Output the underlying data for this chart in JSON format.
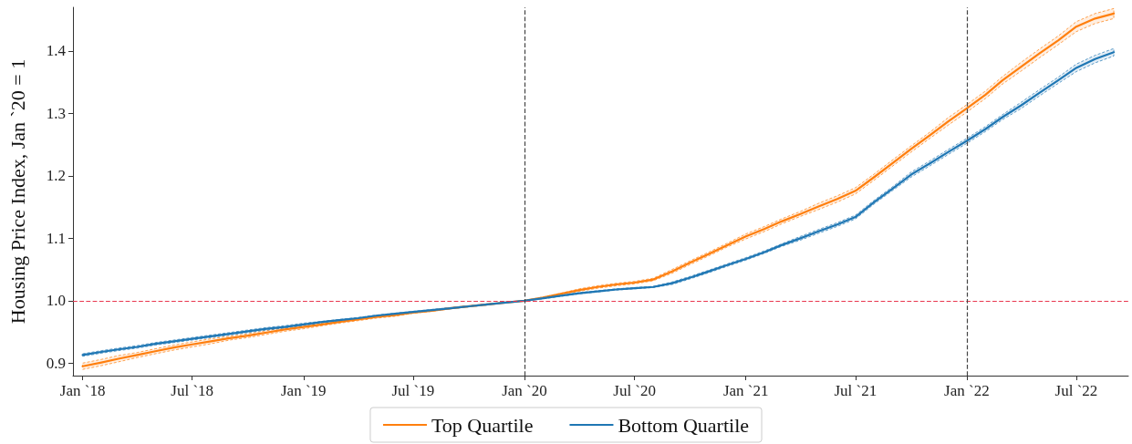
{
  "chart_data": {
    "type": "line",
    "ylabel": "Housing Price Index, Jan `20 = 1",
    "x": [
      "2018-01",
      "2018-02",
      "2018-03",
      "2018-04",
      "2018-05",
      "2018-06",
      "2018-07",
      "2018-08",
      "2018-09",
      "2018-10",
      "2018-11",
      "2018-12",
      "2019-01",
      "2019-02",
      "2019-03",
      "2019-04",
      "2019-05",
      "2019-06",
      "2019-07",
      "2019-08",
      "2019-09",
      "2019-10",
      "2019-11",
      "2019-12",
      "2020-01",
      "2020-02",
      "2020-03",
      "2020-04",
      "2020-05",
      "2020-06",
      "2020-07",
      "2020-08",
      "2020-09",
      "2020-10",
      "2020-11",
      "2020-12",
      "2021-01",
      "2021-02",
      "2021-03",
      "2021-04",
      "2021-05",
      "2021-06",
      "2021-07",
      "2021-08",
      "2021-09",
      "2021-10",
      "2021-11",
      "2021-12",
      "2022-01",
      "2022-02",
      "2022-03",
      "2022-04",
      "2022-05",
      "2022-06",
      "2022-07",
      "2022-08",
      "2022-09"
    ],
    "series": [
      {
        "name": "Top Quartile",
        "color": "#ff7f0e",
        "values": [
          0.895,
          0.901,
          0.907,
          0.913,
          0.919,
          0.925,
          0.93,
          0.935,
          0.94,
          0.944,
          0.949,
          0.954,
          0.958,
          0.962,
          0.966,
          0.97,
          0.974,
          0.977,
          0.981,
          0.984,
          0.988,
          0.991,
          0.994,
          0.997,
          1.0,
          1.005,
          1.011,
          1.017,
          1.022,
          1.026,
          1.029,
          1.034,
          1.047,
          1.061,
          1.075,
          1.089,
          1.103,
          1.115,
          1.127,
          1.139,
          1.151,
          1.163,
          1.176,
          1.198,
          1.221,
          1.243,
          1.265,
          1.287,
          1.308,
          1.33,
          1.353,
          1.375,
          1.396,
          1.417,
          1.439,
          1.452,
          1.46
        ],
        "upper": [
          0.9,
          0.906,
          0.912,
          0.917,
          0.923,
          0.929,
          0.934,
          0.939,
          0.943,
          0.947,
          0.952,
          0.957,
          0.961,
          0.964,
          0.968,
          0.972,
          0.976,
          0.979,
          0.982,
          0.985,
          0.989,
          0.992,
          0.995,
          0.997,
          1.0,
          1.006,
          1.012,
          1.019,
          1.024,
          1.028,
          1.031,
          1.036,
          1.05,
          1.064,
          1.078,
          1.092,
          1.107,
          1.119,
          1.131,
          1.143,
          1.156,
          1.168,
          1.181,
          1.203,
          1.226,
          1.248,
          1.27,
          1.293,
          1.314,
          1.336,
          1.359,
          1.382,
          1.403,
          1.424,
          1.447,
          1.46,
          1.468
        ],
        "lower": [
          0.89,
          0.896,
          0.902,
          0.909,
          0.915,
          0.921,
          0.926,
          0.931,
          0.937,
          0.941,
          0.946,
          0.951,
          0.955,
          0.96,
          0.964,
          0.968,
          0.972,
          0.975,
          0.98,
          0.983,
          0.987,
          0.99,
          0.993,
          0.997,
          1.0,
          1.004,
          1.01,
          1.015,
          1.02,
          1.024,
          1.027,
          1.032,
          1.044,
          1.058,
          1.072,
          1.086,
          1.099,
          1.111,
          1.123,
          1.135,
          1.146,
          1.158,
          1.171,
          1.193,
          1.216,
          1.238,
          1.26,
          1.281,
          1.302,
          1.324,
          1.347,
          1.368,
          1.389,
          1.41,
          1.431,
          1.444,
          1.452
        ]
      },
      {
        "name": "Bottom Quartile",
        "color": "#1f77b4",
        "values": [
          0.913,
          0.918,
          0.922,
          0.926,
          0.931,
          0.935,
          0.939,
          0.943,
          0.947,
          0.951,
          0.955,
          0.958,
          0.962,
          0.966,
          0.969,
          0.972,
          0.976,
          0.979,
          0.982,
          0.985,
          0.988,
          0.991,
          0.994,
          0.997,
          1.0,
          1.004,
          1.008,
          1.012,
          1.015,
          1.018,
          1.02,
          1.022,
          1.028,
          1.037,
          1.047,
          1.057,
          1.067,
          1.078,
          1.089,
          1.1,
          1.111,
          1.122,
          1.134,
          1.158,
          1.18,
          1.202,
          1.22,
          1.238,
          1.256,
          1.275,
          1.294,
          1.313,
          1.333,
          1.353,
          1.373,
          1.387,
          1.398
        ],
        "upper": [
          0.915,
          0.92,
          0.924,
          0.928,
          0.933,
          0.937,
          0.941,
          0.945,
          0.949,
          0.953,
          0.957,
          0.96,
          0.964,
          0.967,
          0.97,
          0.973,
          0.977,
          0.98,
          0.983,
          0.986,
          0.989,
          0.992,
          0.995,
          0.997,
          1.0,
          1.005,
          1.009,
          1.013,
          1.016,
          1.019,
          1.021,
          1.023,
          1.03,
          1.039,
          1.049,
          1.059,
          1.069,
          1.08,
          1.091,
          1.103,
          1.114,
          1.125,
          1.137,
          1.161,
          1.183,
          1.206,
          1.224,
          1.242,
          1.26,
          1.279,
          1.298,
          1.318,
          1.338,
          1.358,
          1.379,
          1.393,
          1.404
        ],
        "lower": [
          0.911,
          0.916,
          0.92,
          0.924,
          0.929,
          0.933,
          0.937,
          0.941,
          0.945,
          0.949,
          0.953,
          0.956,
          0.96,
          0.965,
          0.968,
          0.971,
          0.975,
          0.978,
          0.981,
          0.984,
          0.987,
          0.99,
          0.993,
          0.997,
          1.0,
          1.003,
          1.007,
          1.011,
          1.014,
          1.017,
          1.019,
          1.021,
          1.026,
          1.035,
          1.045,
          1.055,
          1.065,
          1.076,
          1.087,
          1.097,
          1.108,
          1.119,
          1.131,
          1.155,
          1.177,
          1.198,
          1.216,
          1.234,
          1.252,
          1.271,
          1.29,
          1.308,
          1.328,
          1.348,
          1.367,
          1.381,
          1.392
        ]
      }
    ],
    "xlim": [
      "2017-12-16",
      "2022-09-25"
    ],
    "xticks": [
      {
        "value": "2018-01",
        "label": "Jan `18"
      },
      {
        "value": "2018-07",
        "label": "Jul `18"
      },
      {
        "value": "2019-01",
        "label": "Jan `19"
      },
      {
        "value": "2019-07",
        "label": "Jul `19"
      },
      {
        "value": "2020-01",
        "label": "Jan `20"
      },
      {
        "value": "2020-07",
        "label": "Jul `20"
      },
      {
        "value": "2021-01",
        "label": "Jan `21"
      },
      {
        "value": "2021-07",
        "label": "Jul `21"
      },
      {
        "value": "2022-01",
        "label": "Jan `22"
      },
      {
        "value": "2022-07",
        "label": "Jul `22"
      }
    ],
    "ylim": [
      0.88,
      1.47
    ],
    "yticks": [
      0.9,
      {
        "value": 1.0,
        "label": "1.0"
      },
      1.1,
      1.2,
      1.3,
      1.4
    ],
    "ref_lines": [
      {
        "axis": "y",
        "value": 1.0,
        "color": "#e8384f",
        "line_style": "dashed"
      },
      {
        "axis": "x",
        "value": "2020-01",
        "color": "#444444",
        "line_style": "dashed"
      },
      {
        "axis": "x",
        "value": "2022-01",
        "color": "#444444",
        "line_style": "dashed"
      }
    ],
    "legend": "bottom",
    "grid": false,
    "line_style": "solid",
    "marker": "none"
  }
}
